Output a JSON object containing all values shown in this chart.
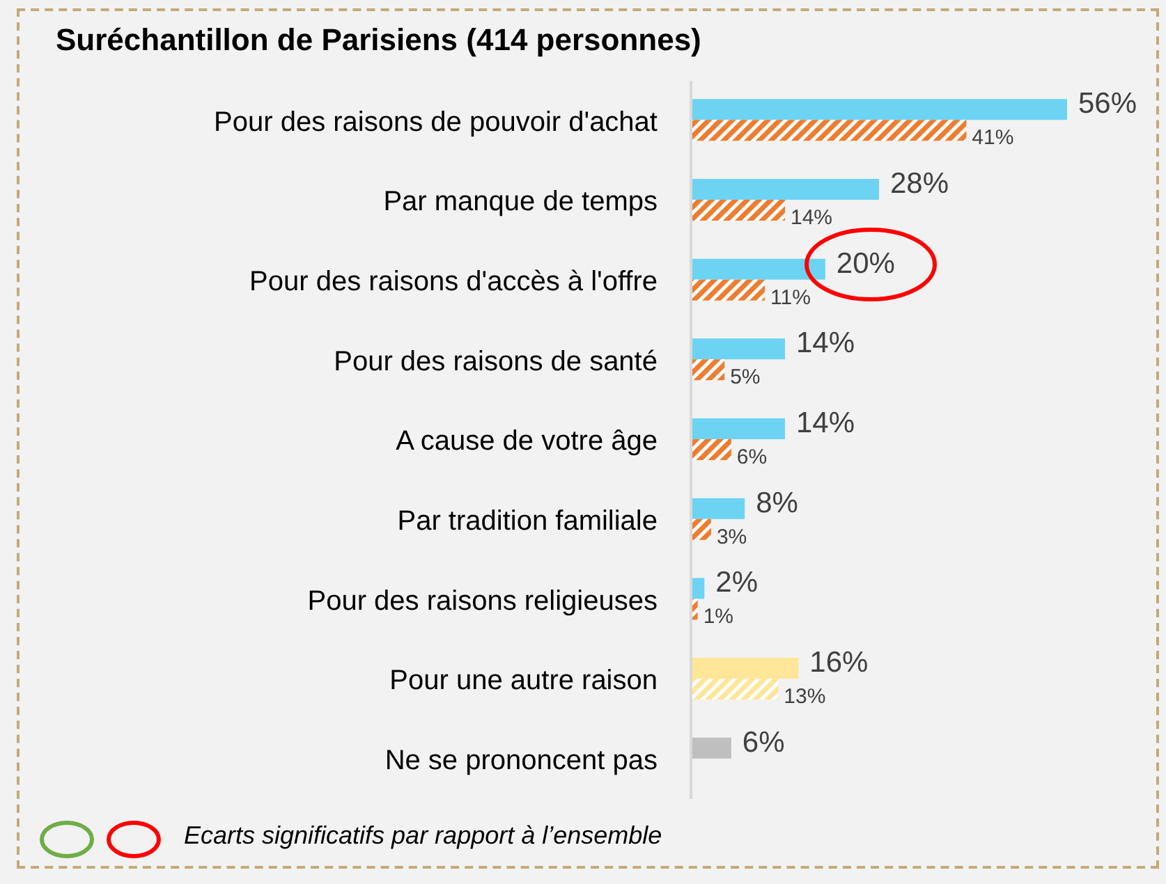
{
  "chart_data": {
    "type": "bar",
    "orientation": "horizontal",
    "title": "Suréchantillon de Parisiens (414 personnes)",
    "categories": [
      "Pour des raisons de pouvoir d'achat",
      "Par manque de temps",
      "Pour des raisons d'accès à l'offre",
      "Pour des raisons de santé",
      "A cause de votre âge",
      "Par tradition familiale",
      "Pour des raisons religieuses",
      "Pour une autre raison",
      "Ne se prononcent pas"
    ],
    "series": [
      {
        "values": [
          56,
          28,
          20,
          14,
          14,
          8,
          2,
          16,
          6
        ],
        "colors": [
          "#6dd3f3",
          "#6dd3f3",
          "#6dd3f3",
          "#6dd3f3",
          "#6dd3f3",
          "#6dd3f3",
          "#6dd3f3",
          "#ffe699",
          "#bfbfbf"
        ],
        "value_labels": [
          "56%",
          "28%",
          "20%",
          "14%",
          "14%",
          "8%",
          "2%",
          "16%",
          "6%"
        ]
      },
      {
        "values": [
          41,
          14,
          11,
          5,
          6,
          3,
          1,
          13,
          null
        ],
        "colors": [
          "#ed7d31",
          "#ed7d31",
          "#ed7d31",
          "#ed7d31",
          "#ed7d31",
          "#ed7d31",
          "#ed7d31",
          "#ffe699",
          null
        ],
        "value_labels": [
          "41%",
          "14%",
          "11%",
          "5%",
          "6%",
          "3%",
          "1%",
          "13%",
          null
        ]
      }
    ],
    "legend": false,
    "annotations": [
      "Ecarts significatifs par rapport à l’ensemble"
    ]
  }
}
